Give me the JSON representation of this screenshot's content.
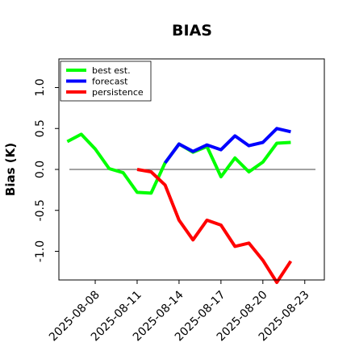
{
  "chart_data": {
    "type": "line",
    "title": "BIAS",
    "ylabel": "Bias (K)",
    "xlabel": "",
    "x_ticks": [
      "2025-08-08",
      "2025-08-11",
      "2025-08-14",
      "2025-08-17",
      "2025-08-20",
      "2025-08-23"
    ],
    "highlight_tick": "2025-08-14",
    "highlight_color": "#228b22",
    "y_ticks": [
      -1.0,
      -0.5,
      0.0,
      0.5,
      1.0
    ],
    "y_tick_labels": [
      "-1.0",
      "-0.5",
      "0.0",
      "0.5",
      "1.0"
    ],
    "ylim": [
      -1.35,
      1.35
    ],
    "xlim": [
      "2025-08-05",
      "2025-08-24"
    ],
    "zero_line": true,
    "grid": false,
    "legend_position": "top-left",
    "series": [
      {
        "name": "best est.",
        "color": "#00ff00",
        "points": [
          [
            "2025-08-06",
            0.34
          ],
          [
            "2025-08-07",
            0.43
          ],
          [
            "2025-08-08",
            0.25
          ],
          [
            "2025-08-09",
            0.01
          ],
          [
            "2025-08-10",
            -0.04
          ],
          [
            "2025-08-11",
            -0.28
          ],
          [
            "2025-08-12",
            -0.29
          ],
          [
            "2025-08-13",
            0.08
          ],
          [
            "2025-08-14",
            0.31
          ],
          [
            "2025-08-15",
            0.21
          ],
          [
            "2025-08-16",
            0.28
          ],
          [
            "2025-08-17",
            -0.09
          ],
          [
            "2025-08-18",
            0.14
          ],
          [
            "2025-08-19",
            -0.03
          ],
          [
            "2025-08-20",
            0.09
          ],
          [
            "2025-08-21",
            0.32
          ],
          [
            "2025-08-22",
            0.33
          ]
        ]
      },
      {
        "name": "forecast",
        "color": "#0000ff",
        "points": [
          [
            "2025-08-13",
            0.08
          ],
          [
            "2025-08-14",
            0.31
          ],
          [
            "2025-08-15",
            0.22
          ],
          [
            "2025-08-16",
            0.3
          ],
          [
            "2025-08-17",
            0.24
          ],
          [
            "2025-08-18",
            0.41
          ],
          [
            "2025-08-19",
            0.29
          ],
          [
            "2025-08-20",
            0.33
          ],
          [
            "2025-08-21",
            0.5
          ],
          [
            "2025-08-22",
            0.46
          ]
        ]
      },
      {
        "name": "persistence",
        "color": "#ff0000",
        "points": [
          [
            "2025-08-11",
            0.0
          ],
          [
            "2025-08-12",
            -0.03
          ],
          [
            "2025-08-13",
            -0.19
          ],
          [
            "2025-08-14",
            -0.62
          ],
          [
            "2025-08-15",
            -0.86
          ],
          [
            "2025-08-16",
            -0.62
          ],
          [
            "2025-08-17",
            -0.68
          ],
          [
            "2025-08-18",
            -0.94
          ],
          [
            "2025-08-19",
            -0.9
          ],
          [
            "2025-08-20",
            -1.11
          ],
          [
            "2025-08-21",
            -1.38
          ],
          [
            "2025-08-22",
            -1.12
          ]
        ]
      }
    ]
  }
}
